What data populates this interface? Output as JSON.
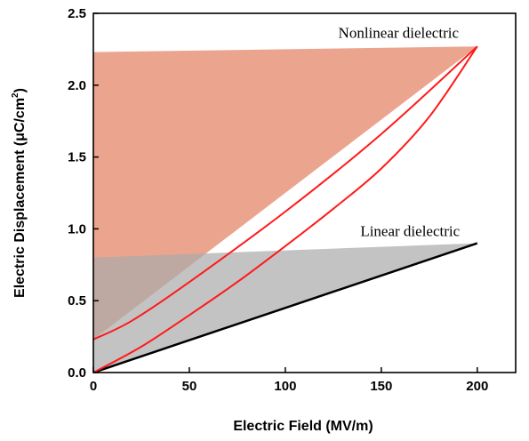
{
  "chart_data": {
    "type": "line",
    "xlabel": "Electric Field (MV/m)",
    "ylabel_main": "Electric Displacement (μC/cm",
    "ylabel_sup": "2",
    "ylabel_close": ")",
    "xlim": [
      0,
      220
    ],
    "ylim": [
      0,
      2.5
    ],
    "x_ticks": [
      0,
      50,
      100,
      150,
      200
    ],
    "y_ticks": [
      0.0,
      0.5,
      1.0,
      1.5,
      2.0,
      2.5
    ],
    "x_tick_labels": [
      "0",
      "50",
      "100",
      "150",
      "200"
    ],
    "y_tick_labels": [
      "0.0",
      "0.5",
      "1.0",
      "1.5",
      "2.0",
      "2.5"
    ],
    "annotations": [
      {
        "text": "Nonlinear dielectric",
        "x": 159,
        "y": 2.33
      },
      {
        "text": "Linear dielectric",
        "x": 165,
        "y": 0.95
      }
    ],
    "regions": [
      {
        "name": "nonlinear-energy-region",
        "color": "#e8957b",
        "opacity": 0.85,
        "points": [
          [
            0,
            2.23
          ],
          [
            200,
            2.27
          ],
          [
            0,
            0.23
          ]
        ]
      },
      {
        "name": "linear-energy-region",
        "color": "#a9a9a9",
        "opacity": 0.7,
        "points": [
          [
            0,
            0.8
          ],
          [
            200,
            0.9
          ],
          [
            0,
            0.0
          ]
        ]
      }
    ],
    "series": [
      {
        "color": "#000000",
        "width": 2.5,
        "points": [
          [
            0,
            0.0
          ],
          [
            50,
            0.225
          ],
          [
            100,
            0.45
          ],
          [
            150,
            0.675
          ],
          [
            200,
            0.9
          ]
        ]
      },
      {
        "color": "#ff1a1a",
        "width": 2,
        "points": [
          [
            0,
            0.0
          ],
          [
            25,
            0.18
          ],
          [
            50,
            0.4
          ],
          [
            75,
            0.63
          ],
          [
            100,
            0.88
          ],
          [
            125,
            1.14
          ],
          [
            150,
            1.42
          ],
          [
            175,
            1.78
          ],
          [
            200,
            2.27
          ]
        ]
      },
      {
        "color": "#ff1a1a",
        "width": 2,
        "points": [
          [
            200,
            2.27
          ],
          [
            150,
            1.66
          ],
          [
            100,
            1.12
          ],
          [
            50,
            0.63
          ],
          [
            20,
            0.36
          ],
          [
            0,
            0.23
          ]
        ]
      }
    ]
  }
}
